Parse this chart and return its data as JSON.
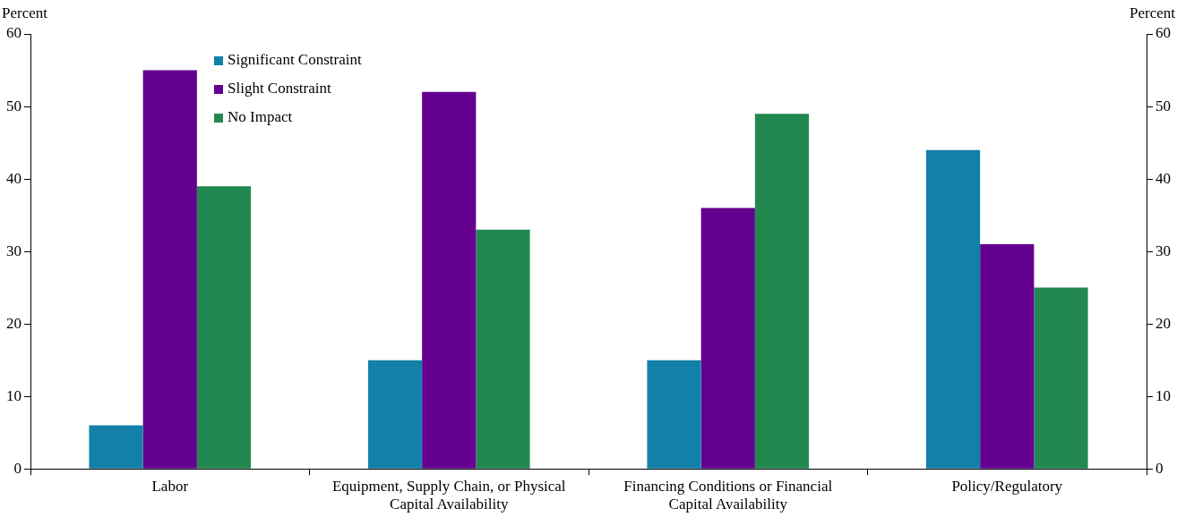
{
  "chart_data": {
    "type": "bar",
    "ylabel": "Percent",
    "y2label": "Percent",
    "categories": [
      "Labor",
      "Equipment, Supply Chain, or Physical Capital Availability",
      "Financing Conditions or Financial Capital Availability",
      "Policy/Regulatory"
    ],
    "series": [
      {
        "name": "Significant Constraint",
        "color": "#1380aa",
        "values": [
          6,
          15,
          15,
          44
        ]
      },
      {
        "name": "Slight Constraint",
        "color": "#640090",
        "values": [
          55,
          52,
          36,
          31
        ]
      },
      {
        "name": "No Impact",
        "color": "#22884f",
        "values": [
          39,
          33,
          49,
          25
        ]
      }
    ],
    "ylim": [
      0,
      60
    ],
    "yticks": [
      0,
      10,
      20,
      30,
      40,
      50,
      60
    ],
    "y2lim": [
      0,
      60
    ],
    "y2ticks": [
      0,
      10,
      20,
      30,
      40,
      50,
      60
    ],
    "grid": false,
    "legend": "top left"
  }
}
